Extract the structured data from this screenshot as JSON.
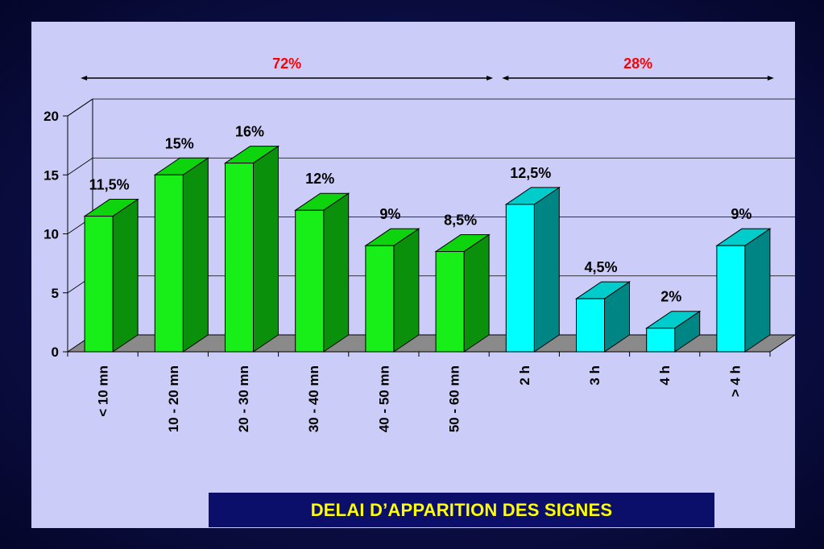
{
  "caption": "DELAI D’APPARITION DES SIGNES",
  "colors": {
    "green_front": "#18ee18",
    "green_side": "#0a900a",
    "green_top": "#0ed40e",
    "cyan_front": "#00ffff",
    "cyan_side": "#008585",
    "cyan_top": "#00cccc",
    "bracket_label": "#ff0000",
    "panel": "#ccccf9",
    "floor": "#8a8a8a",
    "caption_bg": "#0c0f6a",
    "caption_text": "#ffff00"
  },
  "chart_data": {
    "type": "bar",
    "categories": [
      "< 10 mn",
      "10 - 20 mn",
      "20 - 30 mn",
      "30 - 40 mn",
      "40 - 50 mn",
      "50 - 60 mn",
      "2 h",
      "3 h",
      "4 h",
      "> 4 h"
    ],
    "values": [
      11.5,
      15,
      16,
      12,
      9,
      8.5,
      12.5,
      4.5,
      2,
      9
    ],
    "data_labels": [
      "11,5%",
      "15%",
      "16%",
      "12%",
      "9%",
      "8,5%",
      "12,5%",
      "4,5%",
      "2%",
      "9%"
    ],
    "bar_color_group": [
      "green",
      "green",
      "green",
      "green",
      "green",
      "green",
      "cyan",
      "cyan",
      "cyan",
      "cyan"
    ],
    "ylim": [
      0,
      20
    ],
    "yticks": [
      "0",
      "5",
      "10",
      "15",
      "20"
    ],
    "grid": true,
    "brackets": [
      {
        "label": "72%",
        "from_index": 0,
        "to_index": 5
      },
      {
        "label": "28%",
        "from_index": 6,
        "to_index": 9
      }
    ]
  }
}
